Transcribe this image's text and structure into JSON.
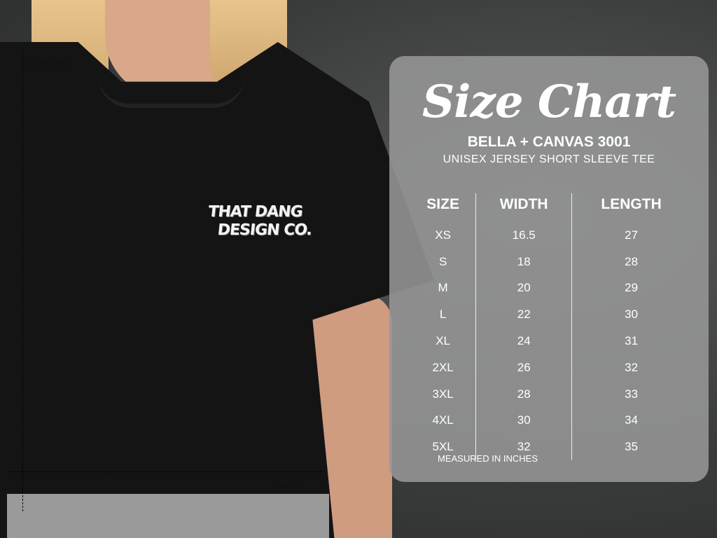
{
  "photo": {
    "logo_lines": [
      "THAT DANG",
      "DESIGN CO."
    ],
    "length_label": "LENGTH",
    "width_label": "WIDTH"
  },
  "chart": {
    "title": "Size Chart",
    "brand": "BELLA + CANVAS 3001",
    "subtitle": "UNISEX JERSEY SHORT SLEEVE TEE",
    "headers": [
      "SIZE",
      "WIDTH",
      "LENGTH"
    ],
    "rows": [
      [
        "XS",
        "16.5",
        "27"
      ],
      [
        "S",
        "18",
        "28"
      ],
      [
        "M",
        "20",
        "29"
      ],
      [
        "L",
        "22",
        "30"
      ],
      [
        "XL",
        "24",
        "31"
      ],
      [
        "2XL",
        "26",
        "32"
      ],
      [
        "3XL",
        "28",
        "33"
      ],
      [
        "4XL",
        "30",
        "34"
      ],
      [
        "5XL",
        "32",
        "35"
      ]
    ],
    "note": "MEASURED IN INCHES"
  }
}
